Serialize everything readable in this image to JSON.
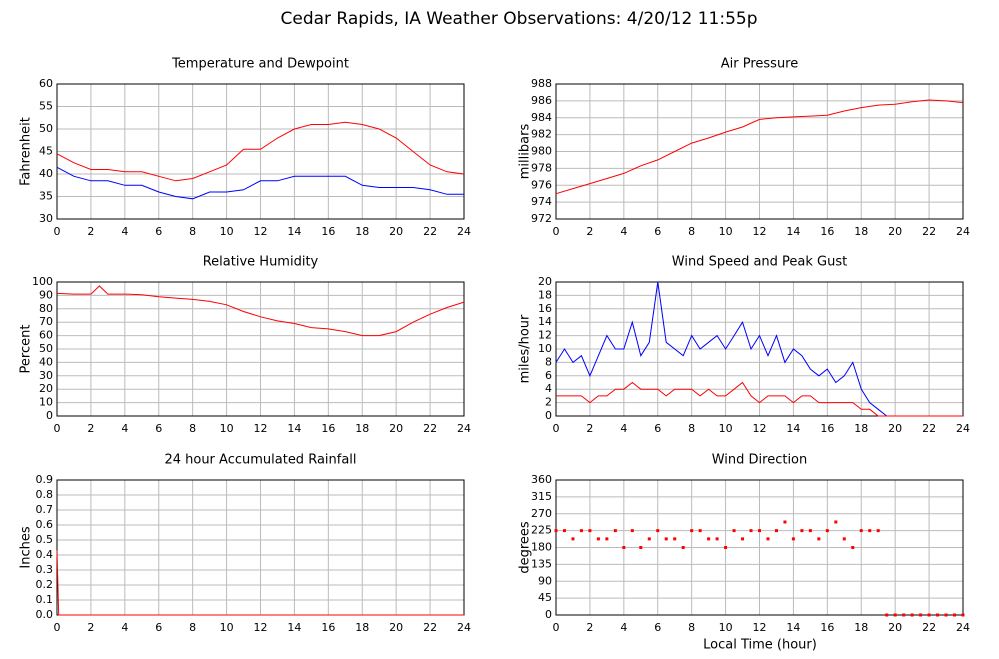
{
  "title": "Cedar Rapids, IA Weather Observations: 4/20/12 11:55p",
  "xlabel": "Local Time (hour)",
  "chart_data": [
    {
      "type": "line",
      "title": "Temperature and Dewpoint",
      "ylabel": "Fahrenheit",
      "xlim": [
        0,
        24
      ],
      "xticks": [
        0,
        2,
        4,
        6,
        8,
        10,
        12,
        14,
        16,
        18,
        20,
        22,
        24
      ],
      "ylim": [
        30,
        60
      ],
      "yticks": [
        30,
        35,
        40,
        45,
        50,
        55,
        60
      ],
      "grid": true,
      "x": [
        0,
        1,
        2,
        3,
        4,
        5,
        6,
        7,
        8,
        9,
        10,
        11,
        12,
        13,
        14,
        15,
        16,
        17,
        18,
        19,
        20,
        21,
        22,
        23,
        24
      ],
      "series": [
        {
          "color": "#ff0000",
          "values": [
            44.5,
            42.5,
            41,
            41,
            40.5,
            40.5,
            39.5,
            38.5,
            39,
            40.5,
            42,
            45.5,
            45.5,
            48,
            50,
            51,
            51,
            51.5,
            51,
            50,
            48,
            45,
            42,
            40.5,
            40
          ]
        },
        {
          "color": "#0000ff",
          "values": [
            41.5,
            39.5,
            38.5,
            38.5,
            37.5,
            37.5,
            36,
            35,
            34.5,
            36,
            36,
            36.5,
            38.5,
            38.5,
            39.5,
            39.5,
            39.5,
            39.5,
            37.5,
            37,
            37,
            37,
            36.5,
            35.5,
            35.5
          ]
        }
      ]
    },
    {
      "type": "line",
      "title": "Air Pressure",
      "ylabel": "millibars",
      "xlim": [
        0,
        24
      ],
      "xticks": [
        0,
        2,
        4,
        6,
        8,
        10,
        12,
        14,
        16,
        18,
        20,
        22,
        24
      ],
      "ylim": [
        972,
        988
      ],
      "yticks": [
        972,
        974,
        976,
        978,
        980,
        982,
        984,
        986,
        988
      ],
      "grid": true,
      "x": [
        0,
        1,
        2,
        3,
        4,
        5,
        6,
        7,
        8,
        9,
        10,
        11,
        12,
        13,
        14,
        15,
        16,
        17,
        18,
        19,
        20,
        21,
        22,
        23,
        24
      ],
      "series": [
        {
          "color": "#ff0000",
          "values": [
            975,
            975.6,
            976.2,
            976.8,
            977.4,
            978.3,
            979,
            980,
            981,
            981.6,
            982.3,
            982.9,
            983.8,
            984,
            984.1,
            984.2,
            984.3,
            984.8,
            985.2,
            985.5,
            985.6,
            985.9,
            986.1,
            986,
            985.8
          ]
        }
      ]
    },
    {
      "type": "line",
      "title": "Relative Humidity",
      "ylabel": "Percent",
      "xlim": [
        0,
        24
      ],
      "xticks": [
        0,
        2,
        4,
        6,
        8,
        10,
        12,
        14,
        16,
        18,
        20,
        22,
        24
      ],
      "ylim": [
        0,
        100
      ],
      "yticks": [
        0,
        10,
        20,
        30,
        40,
        50,
        60,
        70,
        80,
        90,
        100
      ],
      "grid": true,
      "x": [
        0,
        1,
        2,
        2.5,
        3,
        4,
        5,
        6,
        7,
        8,
        9,
        10,
        11,
        12,
        13,
        14,
        15,
        16,
        17,
        18,
        19,
        20,
        21,
        22,
        23,
        24
      ],
      "series": [
        {
          "color": "#ff0000",
          "values": [
            91.5,
            91,
            91,
            97,
            91,
            91,
            90.5,
            89,
            88,
            87,
            85.5,
            83,
            78,
            74,
            71,
            69,
            66,
            65,
            63,
            60,
            60,
            63,
            70,
            76,
            81,
            85
          ]
        }
      ]
    },
    {
      "type": "line",
      "title": "Wind Speed and Peak Gust",
      "ylabel": "miles/hour",
      "xlim": [
        0,
        24
      ],
      "xticks": [
        0,
        2,
        4,
        6,
        8,
        10,
        12,
        14,
        16,
        18,
        20,
        22,
        24
      ],
      "ylim": [
        0,
        20
      ],
      "yticks": [
        0,
        2,
        4,
        6,
        8,
        10,
        12,
        14,
        16,
        18,
        20
      ],
      "grid": true,
      "x": [
        0,
        0.5,
        1,
        1.5,
        2,
        2.5,
        3,
        3.5,
        4,
        4.5,
        5,
        5.5,
        6,
        6.5,
        7,
        7.5,
        8,
        8.5,
        9,
        9.5,
        10,
        10.5,
        11,
        11.5,
        12,
        12.5,
        13,
        13.5,
        14,
        14.5,
        15,
        15.5,
        16,
        16.5,
        17,
        17.5,
        18,
        18.5,
        19,
        19.5,
        20,
        20.5,
        21,
        21.5,
        22,
        22.5,
        23,
        23.5,
        24
      ],
      "series": [
        {
          "color": "#0000ff",
          "values": [
            8,
            10,
            8,
            9,
            6,
            9,
            12,
            10,
            10,
            14,
            9,
            11,
            20,
            11,
            10,
            9,
            12,
            10,
            11,
            12,
            10,
            12,
            14,
            10,
            12,
            9,
            12,
            8,
            10,
            9,
            7,
            6,
            7,
            5,
            6,
            8,
            4,
            2,
            1,
            0,
            0,
            0,
            0,
            0,
            0,
            0,
            0,
            0,
            0
          ]
        },
        {
          "color": "#ff0000",
          "values": [
            3,
            3,
            3,
            3,
            2,
            3,
            3,
            4,
            4,
            5,
            4,
            4,
            4,
            3,
            4,
            4,
            4,
            3,
            4,
            3,
            3,
            4,
            5,
            3,
            2,
            3,
            3,
            3,
            2,
            3,
            3,
            2,
            2,
            2,
            2,
            2,
            1,
            1,
            0,
            0,
            0,
            0,
            0,
            0,
            0,
            0,
            0,
            0,
            0
          ]
        }
      ]
    },
    {
      "type": "line",
      "title": "24 hour Accumulated Rainfall",
      "ylabel": "Inches",
      "xlim": [
        0,
        24
      ],
      "xticks": [
        0,
        2,
        4,
        6,
        8,
        10,
        12,
        14,
        16,
        18,
        20,
        22,
        24
      ],
      "ylim": [
        0,
        0.9
      ],
      "yticks": [
        {
          "value": 0,
          "label": "0.0"
        },
        0.1,
        0.2,
        0.3,
        0.4,
        0.5,
        0.6,
        0.7,
        0.8,
        0.9
      ],
      "grid": true,
      "x": [
        0,
        0.1,
        24
      ],
      "series": [
        {
          "color": "#ff0000",
          "values": [
            0.43,
            0,
            0
          ]
        }
      ]
    },
    {
      "type": "scatter",
      "title": "Wind Direction",
      "ylabel": "degrees",
      "xlim": [
        0,
        24
      ],
      "xticks": [
        0,
        2,
        4,
        6,
        8,
        10,
        12,
        14,
        16,
        18,
        20,
        22,
        24
      ],
      "ylim": [
        0,
        360
      ],
      "yticks": [
        0,
        45,
        90,
        135,
        180,
        225,
        270,
        315,
        360
      ],
      "grid": true,
      "x": [
        0,
        0.5,
        1,
        1.5,
        2,
        2.5,
        3,
        3.5,
        4,
        4.5,
        5,
        5.5,
        6,
        6.5,
        7,
        7.5,
        8,
        8.5,
        9,
        9.5,
        10,
        10.5,
        11,
        11.5,
        12,
        12.5,
        13,
        13.5,
        14,
        14.5,
        15,
        15.5,
        16,
        16.5,
        17,
        17.5,
        18,
        18.5,
        19,
        19.5,
        20,
        20.5,
        21,
        21.5,
        22,
        22.5,
        23,
        23.5,
        24
      ],
      "series": [
        {
          "color": "#ff0000",
          "values": [
            225,
            225,
            203,
            225,
            225,
            203,
            203,
            225,
            180,
            225,
            180,
            203,
            225,
            203,
            203,
            180,
            225,
            225,
            203,
            203,
            180,
            225,
            203,
            225,
            225,
            203,
            225,
            248,
            203,
            225,
            225,
            203,
            225,
            248,
            203,
            180,
            225,
            225,
            225,
            0,
            0,
            0,
            0,
            0,
            0,
            0,
            0,
            0,
            0
          ]
        }
      ]
    }
  ]
}
